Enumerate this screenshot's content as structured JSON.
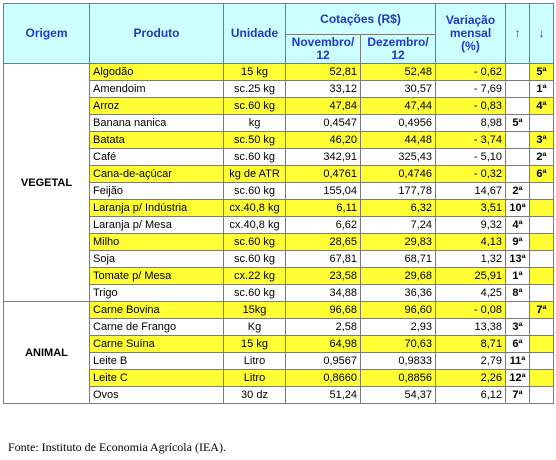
{
  "header": {
    "origem": "Origem",
    "produto": "Produto",
    "unidade": "Unidade",
    "cotacoes": "Cotações (R$)",
    "novembro": "Novembro/ 12",
    "dezembro": "Dezembro/ 12",
    "variacao": "Variação mensal (%)",
    "up_arrow": "↑",
    "down_arrow": "↓"
  },
  "groups": {
    "vegetal": "VEGETAL",
    "animal": "ANIMAL"
  },
  "colors": {
    "header_bg": "#ccffff",
    "highlight": "#ffff33",
    "blue": "#1f38c9",
    "red": "#e01010"
  },
  "rows": [
    {
      "produto": "Algodão",
      "unidade": "15 kg",
      "nov": "52,81",
      "dez": "52,48",
      "var": "- 0,62",
      "up": "",
      "down": "5ª",
      "hl": true
    },
    {
      "produto": "Amendoim",
      "unidade": "sc.25 kg",
      "nov": "33,12",
      "dez": "30,57",
      "var": "- 7,69",
      "up": "",
      "down": "1ª",
      "hl": false
    },
    {
      "produto": "Arroz",
      "unidade": "sc.60 kg",
      "nov": "47,84",
      "dez": "47,44",
      "var": "- 0,83",
      "up": "",
      "down": "4ª",
      "hl": true
    },
    {
      "produto": "Banana nanica",
      "unidade": "kg",
      "nov": "0,4547",
      "dez": "0,4956",
      "var": "8,98",
      "up": "5ª",
      "down": "",
      "hl": false
    },
    {
      "produto": "Batata",
      "unidade": "sc.50 kg",
      "nov": "46,20",
      "dez": "44,48",
      "var": "- 3,74",
      "up": "",
      "down": "3ª",
      "hl": true
    },
    {
      "produto": "Café",
      "unidade": "sc.60 kg",
      "nov": "342,91",
      "dez": "325,43",
      "var": "- 5,10",
      "up": "",
      "down": "2ª",
      "hl": false
    },
    {
      "produto": "Cana-de-açúcar",
      "unidade": "kg de ATR",
      "nov": "0,4761",
      "dez": "0,4746",
      "var": "- 0,32",
      "up": "",
      "down": "6ª",
      "hl": true
    },
    {
      "produto": "Feijão",
      "unidade": "sc.60 kg",
      "nov": "155,04",
      "dez": "177,78",
      "var": "14,67",
      "up": "2ª",
      "down": "",
      "hl": false
    },
    {
      "produto": "Laranja p/ Indústria",
      "unidade": "cx.40,8 kg",
      "nov": "6,11",
      "dez": "6,32",
      "var": "3,51",
      "up": "10ª",
      "down": "",
      "hl": true
    },
    {
      "produto": "Laranja p/ Mesa",
      "unidade": "cx.40,8 kg",
      "nov": "6,62",
      "dez": "7,24",
      "var": "9,32",
      "up": "4ª",
      "down": "",
      "hl": false
    },
    {
      "produto": "Milho",
      "unidade": "sc.60 kg",
      "nov": "28,65",
      "dez": "29,83",
      "var": "4,13",
      "up": "9ª",
      "down": "",
      "hl": true
    },
    {
      "produto": "Soja",
      "unidade": "sc.60 kg",
      "nov": "67,81",
      "dez": "68,71",
      "var": "1,32",
      "up": "13ª",
      "down": "",
      "hl": false
    },
    {
      "produto": "Tomate p/ Mesa",
      "unidade": "cx.22 kg",
      "nov": "23,58",
      "dez": "29,68",
      "var": "25,91",
      "up": "1ª",
      "down": "",
      "hl": true
    },
    {
      "produto": "Trigo",
      "unidade": "sc.60 kg",
      "nov": "34,88",
      "dez": "36,36",
      "var": "4,25",
      "up": "8ª",
      "down": "",
      "hl": false
    },
    {
      "produto": "Carne Bovina",
      "unidade": "15kg",
      "nov": "96,68",
      "dez": "96,60",
      "var": "- 0,08",
      "up": "",
      "down": "7ª",
      "hl": true
    },
    {
      "produto": "Carne de Frango",
      "unidade": "Kg",
      "nov": "2,58",
      "dez": "2,93",
      "var": "13,38",
      "up": "3ª",
      "down": "",
      "hl": false
    },
    {
      "produto": "Carne Suína",
      "unidade": "15 kg",
      "nov": "64,98",
      "dez": "70,63",
      "var": "8,71",
      "up": "6ª",
      "down": "",
      "hl": true
    },
    {
      "produto": "Leite B",
      "unidade": "Litro",
      "nov": "0,9567",
      "dez": "0,9833",
      "var": "2,79",
      "up": "11ª",
      "down": "",
      "hl": false
    },
    {
      "produto": "Leite C",
      "unidade": "Litro",
      "nov": "0,8660",
      "dez": "0,8856",
      "var": "2,26",
      "up": "12ª",
      "down": "",
      "hl": true
    },
    {
      "produto": "Ovos",
      "unidade": "30 dz",
      "nov": "51,24",
      "dez": "54,37",
      "var": "6,12",
      "up": "7ª",
      "down": "",
      "hl": false
    }
  ],
  "source": "Fonte: Instituto de Economia Agrícola (IEA)."
}
